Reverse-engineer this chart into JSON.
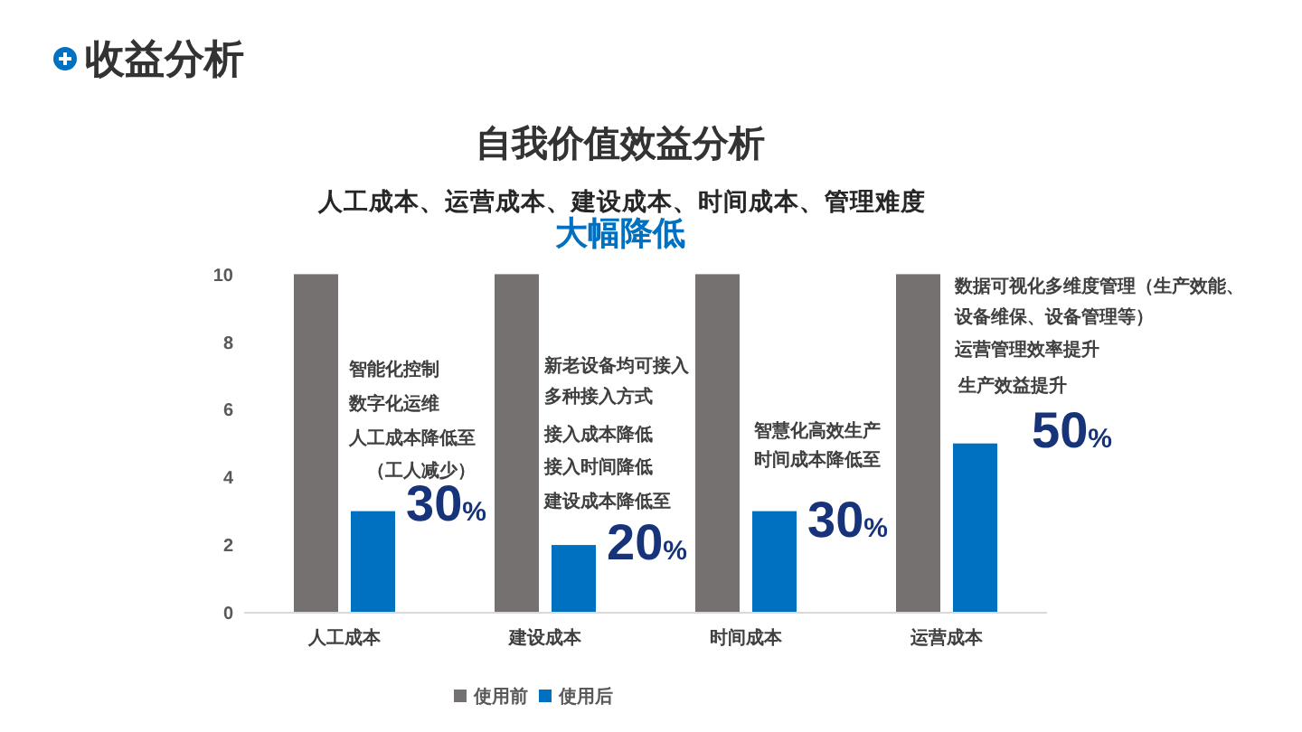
{
  "chart_data": {
    "type": "bar",
    "title": "自我价值效益分析",
    "subtitle": "人工成本、运营成本、建设成本、时间成本、管理难度",
    "categories": [
      "人工成本",
      "建设成本",
      "时间成本",
      "运营成本"
    ],
    "series": [
      {
        "name": "使用前",
        "color": "#767171",
        "values": [
          10,
          10,
          10,
          10
        ]
      },
      {
        "name": "使用后",
        "color": "#0070c0",
        "values": [
          3,
          2,
          3,
          5
        ]
      }
    ],
    "ylim": [
      0,
      10
    ],
    "yticks": [
      0,
      2,
      4,
      6,
      8,
      10
    ],
    "legend": "bottom",
    "annotations": [
      "收益分析",
      "大幅降低",
      "智能化控制",
      "数字化运维",
      "人工成本降低至",
      "（工人减少）",
      "新老设备均可接入",
      "多种接入方式",
      "接入成本降低",
      "接入时间降低",
      "建设成本降低至",
      "智慧化高效生产",
      "时间成本降低至",
      "数据可视化多维度管理（生产效能、设备维保、设备管理等）",
      "运营管理效率提升",
      "生产效益提升",
      {
        "text": "30%",
        "x": "人工成本",
        "y": 3
      },
      {
        "text": "20%",
        "x": "建设成本",
        "y": 2
      },
      {
        "text": "30%",
        "x": "时间成本",
        "y": 3
      },
      {
        "text": "50%",
        "x": "运营成本",
        "y": 5
      }
    ]
  }
}
